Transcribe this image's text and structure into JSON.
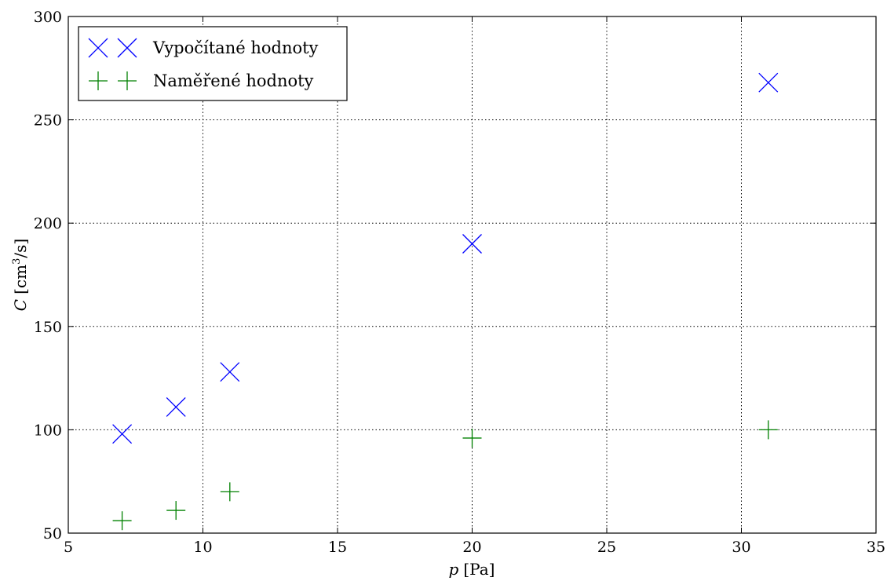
{
  "chart_data": {
    "type": "scatter",
    "xlabel_var": "p",
    "xlabel_unit": "[Pa]",
    "ylabel_var": "C",
    "ylabel_unit_pre": "[cm",
    "ylabel_unit_sup": "3",
    "ylabel_unit_post": "/s]",
    "xlim": [
      5,
      35
    ],
    "ylim": [
      50,
      300
    ],
    "xticks": [
      5,
      10,
      15,
      20,
      25,
      30,
      35
    ],
    "yticks": [
      50,
      100,
      150,
      200,
      250,
      300
    ],
    "grid": true,
    "legend_position": "top-left",
    "series": [
      {
        "name": "Vypočítané hodnoty",
        "marker": "x",
        "color": "#0000ff",
        "x": [
          7,
          9,
          11,
          20,
          31
        ],
        "y": [
          98,
          111,
          128,
          190,
          268
        ]
      },
      {
        "name": "Naměřené hodnoty",
        "marker": "+",
        "color": "#008000",
        "x": [
          7,
          9,
          11,
          20,
          31
        ],
        "y": [
          56,
          61,
          70,
          96,
          100
        ]
      }
    ]
  }
}
